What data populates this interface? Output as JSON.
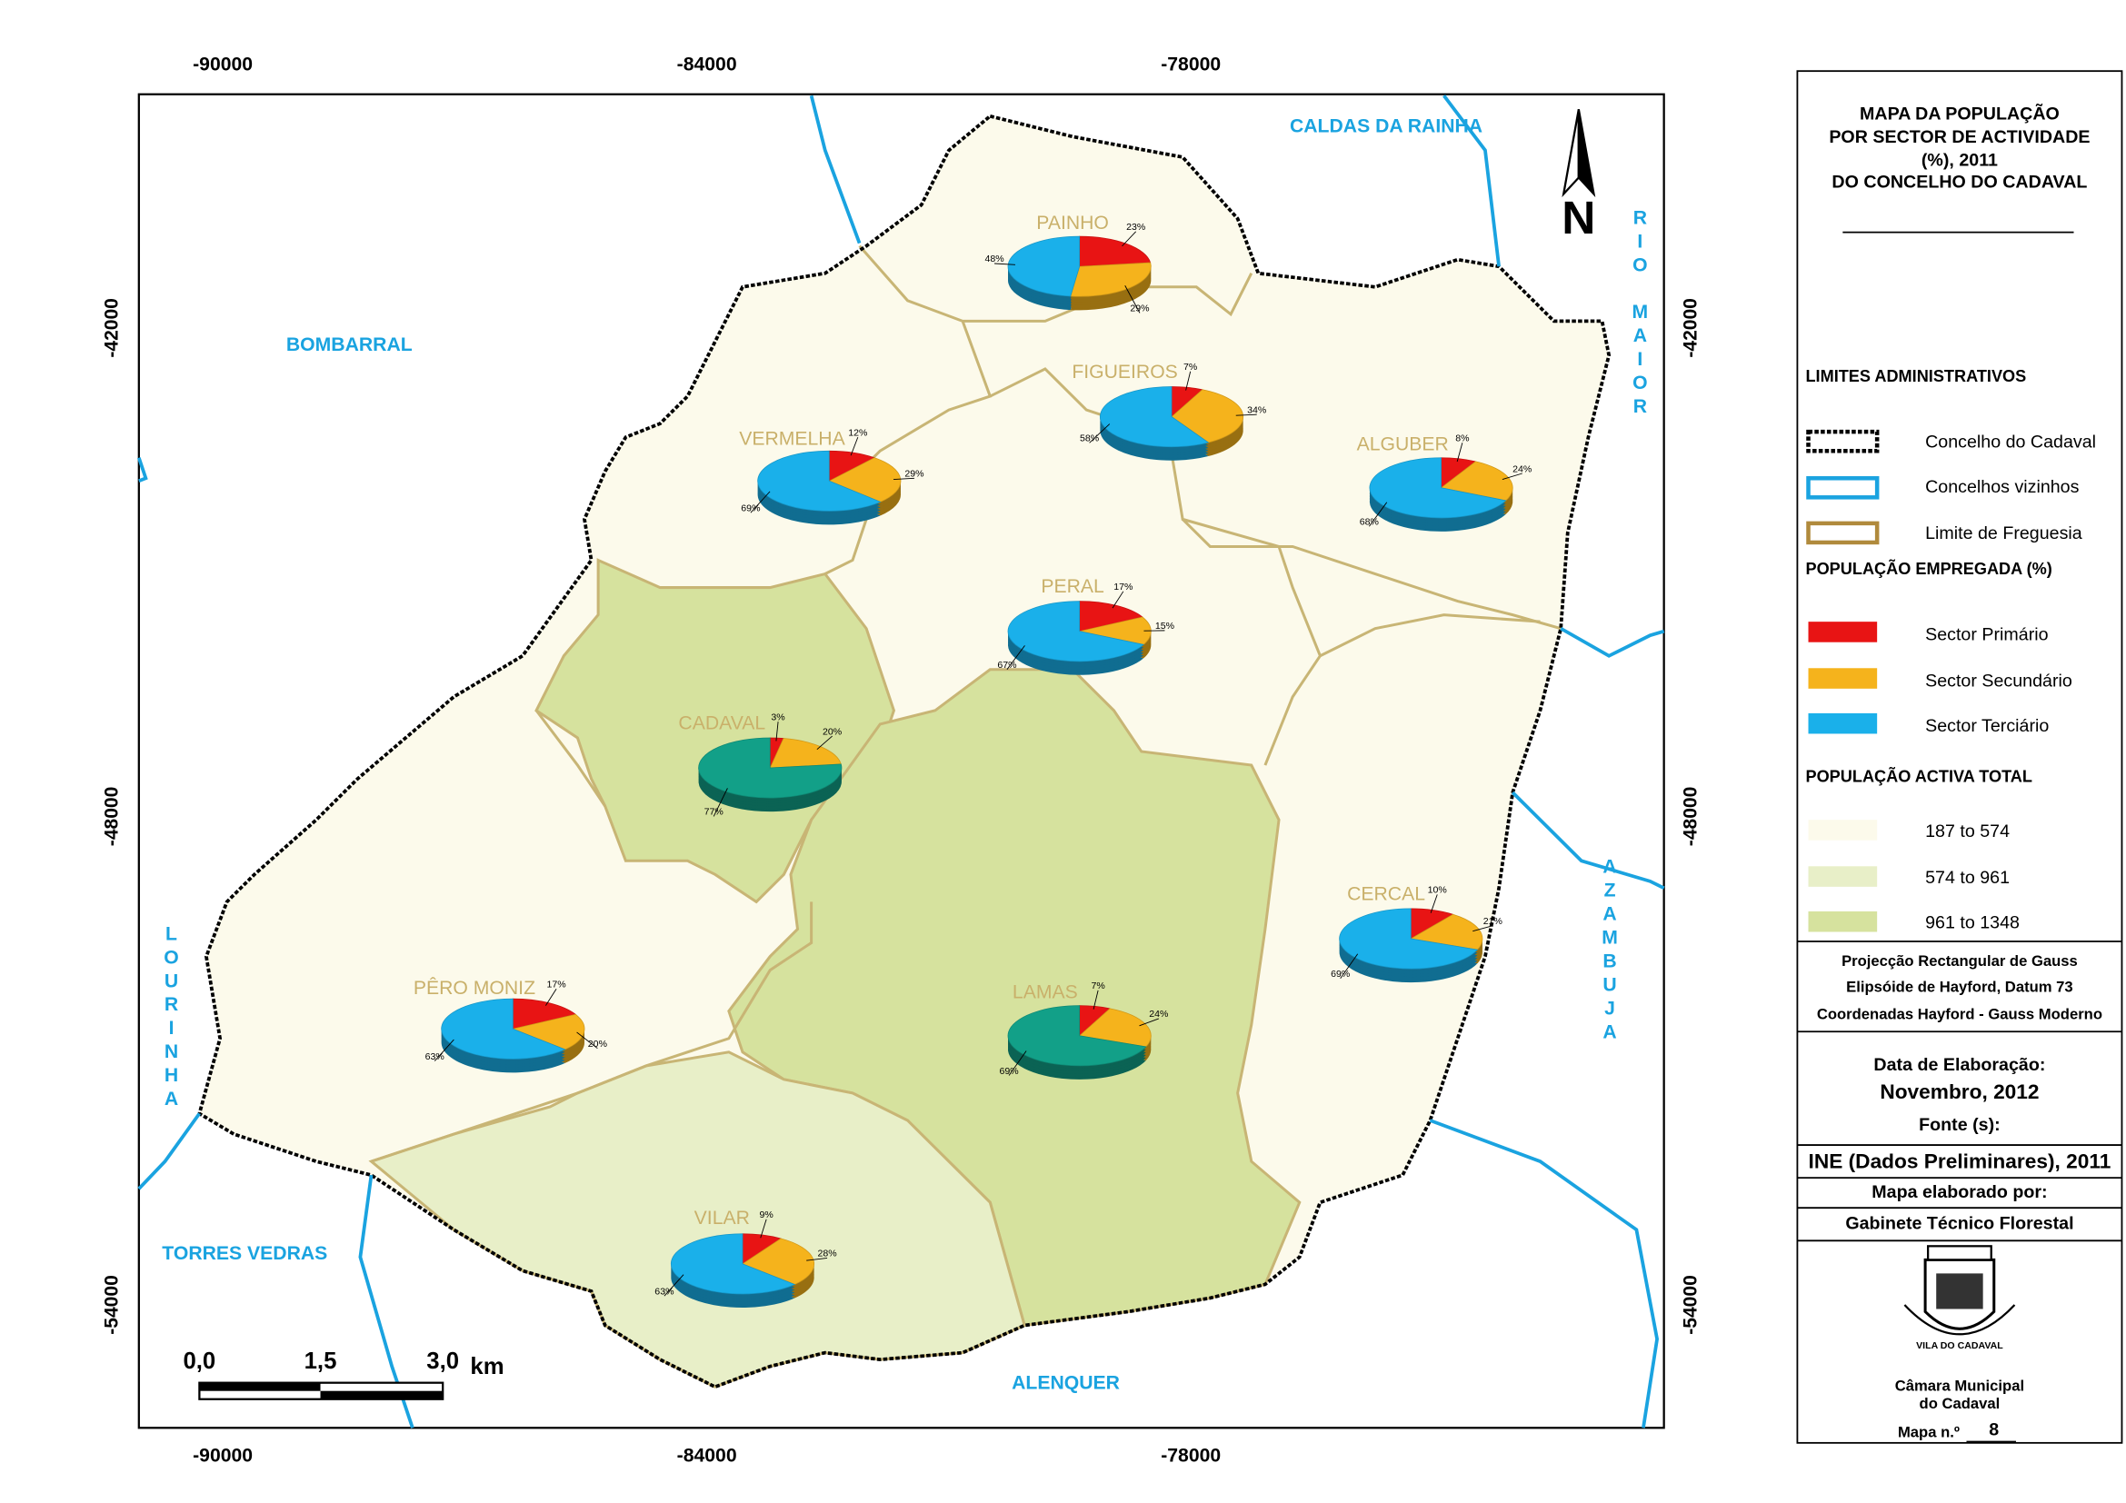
{
  "map": {
    "x_coords": [
      -90000,
      -84000,
      -78000
    ],
    "y_coords": [
      -42000,
      -48000,
      -54000
    ],
    "neighbors": [
      "CALDAS DA RAINHA",
      "BOMBARRAL",
      "TORRES VEDRAS",
      "ALENQUER",
      "RIO MAIOR",
      "AZAMBUJA",
      "LOURINHA"
    ],
    "north": "N",
    "scale": {
      "ticks": [
        "0,0",
        "1,5",
        "3,0"
      ],
      "unit": "km"
    },
    "parishes": [
      {
        "name": "PAINHO",
        "values": [
          23,
          29,
          48
        ],
        "value_labels": [
          "23%",
          "29%",
          "48%"
        ]
      },
      {
        "name": "FIGUEIROS",
        "values": [
          7,
          34,
          58
        ],
        "value_labels": [
          "7%",
          "34%",
          "58%"
        ]
      },
      {
        "name": "VERMELHA",
        "values": [
          12,
          29,
          69
        ],
        "value_labels": [
          "12%",
          "29%",
          "69%"
        ]
      },
      {
        "name": "ALGUBER",
        "values": [
          8,
          24,
          68
        ],
        "value_labels": [
          "8%",
          "24%",
          "68%"
        ]
      },
      {
        "name": "PERAL",
        "values": [
          17,
          15,
          67
        ],
        "value_labels": [
          "17%",
          "15%",
          "67%"
        ]
      },
      {
        "name": "CADAVAL",
        "values": [
          3,
          20,
          77
        ],
        "value_labels": [
          "3%",
          "20%",
          "77%"
        ],
        "tertiary_color": "#12a088"
      },
      {
        "name": "CERCAL",
        "values": [
          10,
          21,
          69
        ],
        "value_labels": [
          "10%",
          "21%",
          "69%"
        ]
      },
      {
        "name": "PÊRO MONIZ",
        "values": [
          17,
          20,
          63
        ],
        "value_labels": [
          "17%",
          "20%",
          "63%"
        ]
      },
      {
        "name": "LAMAS",
        "values": [
          7,
          24,
          69
        ],
        "value_labels": [
          "7%",
          "24%",
          "69%"
        ],
        "tertiary_color": "#12a088"
      },
      {
        "name": "VILAR",
        "values": [
          9,
          28,
          63
        ],
        "value_labels": [
          "9%",
          "28%",
          "63%"
        ]
      }
    ]
  },
  "legend": {
    "title_lines": [
      "MAPA DA POPULAÇÃO",
      "POR SECTOR DE ACTIVIDADE",
      "(%), 2011",
      "DO CONCELHO DO CADAVAL"
    ],
    "limits_title": "LIMITES ADMINISTRATIVOS",
    "limits_items": [
      "Concelho do Cadaval",
      "Concelhos vizinhos",
      "Limite de Freguesia"
    ],
    "employed_title": "POPULAÇÃO EMPREGADA (%)",
    "sectors": [
      {
        "name": "Sector Primário",
        "color": "#e81414"
      },
      {
        "name": "Sector Secundário",
        "color": "#f5b31c"
      },
      {
        "name": "Sector Terciário",
        "color": "#1ab0ea"
      }
    ],
    "active_title": "POPULAÇÃO ACTIVA TOTAL",
    "active_classes": [
      {
        "label": "187 to 574",
        "color": "#fcfaeb"
      },
      {
        "label": "574 to 961",
        "color": "#e8efc8"
      },
      {
        "label": "961 to 1348",
        "color": "#d6e29e"
      }
    ],
    "projection": [
      "Projecção Rectangular de Gauss",
      "Elipsóide de Hayford, Datum 73",
      "Coordenadas Hayford - Gauss Moderno"
    ],
    "date_label": "Data de Elaboração:",
    "date": "Novembro, 2012",
    "source_label": "Fonte (s):",
    "source": "INE (Dados Preliminares), 2011",
    "author_label": "Mapa elaborado por:",
    "author": "Gabinete Técnico Florestal",
    "crest_text": "VILA DO CADAVAL",
    "council": [
      "Câmara Municipal",
      "do Cadaval"
    ],
    "map_number_label": "Mapa n.º",
    "map_number": "8"
  }
}
